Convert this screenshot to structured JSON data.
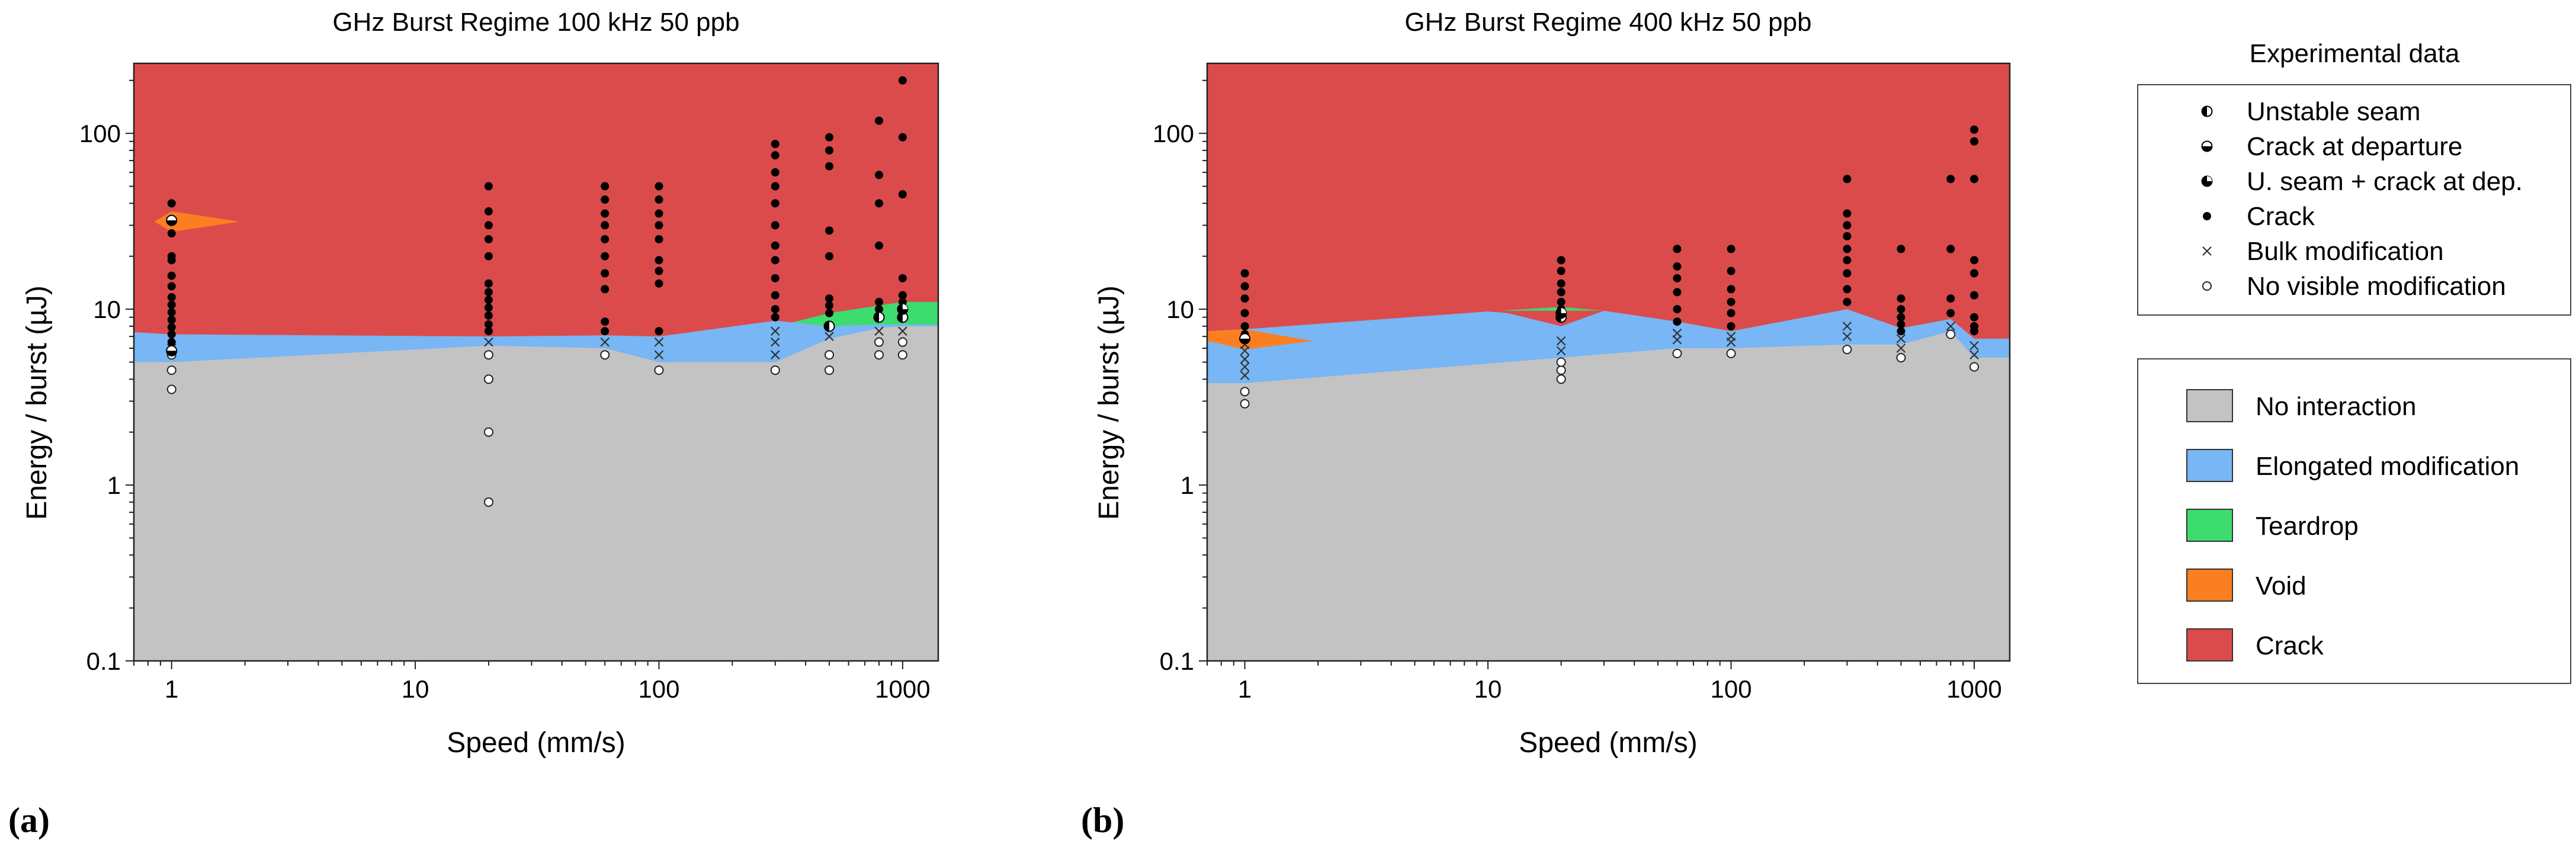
{
  "figure": {
    "legend_markers_title": "Experimental data",
    "legend_markers": [
      {
        "label": "Unstable seam",
        "marker": "half-left-filled-circle"
      },
      {
        "label": "Crack at departure",
        "marker": "half-bottom-filled-circle"
      },
      {
        "label": "U. seam + crack at dep.",
        "marker": "three-quarter-filled-circle"
      },
      {
        "label": "Crack",
        "marker": "filled-dot"
      },
      {
        "label": "Bulk modification",
        "marker": "x-cross"
      },
      {
        "label": "No visible modification",
        "marker": "open-circle"
      }
    ],
    "legend_regions": [
      {
        "label": "No interaction",
        "color": "#c3c3c3"
      },
      {
        "label": "Elongated modification",
        "color": "#78b6f5"
      },
      {
        "label": "Teardrop",
        "color": "#3ddc6e"
      },
      {
        "label": "Void",
        "color": "#fb7f21"
      },
      {
        "label": "Crack",
        "color": "#db4b4c"
      }
    ]
  },
  "chart_data": [
    {
      "type": "scatter",
      "panel_label": "(a)",
      "title": "GHz Burst Regime 100 kHz 50 ppb",
      "xlabel": "Speed (mm/s)",
      "ylabel": "Energy / burst (µJ)",
      "xscale": "log",
      "yscale": "log",
      "xlim": [
        0.7,
        1400
      ],
      "ylim": [
        0.1,
        250
      ],
      "xticks": [
        1,
        10,
        100,
        1000
      ],
      "xtick_labels": [
        "1",
        "10",
        "100",
        "1000"
      ],
      "yticks": [
        0.1,
        1,
        10,
        100
      ],
      "ytick_labels": [
        "0.1",
        "1",
        "10",
        "100"
      ],
      "regions": {
        "no_interaction_upper": {
          "x": [
            0.7,
            1,
            20,
            60,
            100,
            300,
            500,
            800,
            1000,
            1400
          ],
          "y": [
            5.0,
            5.0,
            6.2,
            6.0,
            5.0,
            5.0,
            6.8,
            7.8,
            8.0,
            8.0
          ]
        },
        "elongated_upper": {
          "x": [
            0.7,
            1,
            20,
            60,
            100,
            300,
            500,
            800,
            1000,
            1400
          ],
          "y": [
            7.4,
            7.2,
            7.0,
            7.1,
            7.0,
            8.6,
            8.0,
            8.2,
            8.2,
            8.2
          ]
        },
        "teardrop_upper": {
          "x": [
            350,
            500,
            800,
            1000,
            1400
          ],
          "y": [
            8.4,
            9.5,
            10.5,
            11.0,
            11.0
          ]
        },
        "void_triangle": {
          "x": [
            0.85,
            1.0,
            1.9,
            1.0
          ],
          "y": [
            31.5,
            36.0,
            31.5,
            27.5
          ]
        }
      },
      "points": {
        "crack": [
          {
            "x": 1,
            "y": [
              6.5,
              7.2,
              7.9,
              8.7,
              9.6,
              10.6,
              11.7,
              13.5,
              15.5,
              19,
              20,
              27,
              40
            ]
          },
          {
            "x": 20,
            "y": [
              7.5,
              8.2,
              9.2,
              10.2,
              11.3,
              12.5,
              14,
              20,
              25,
              30,
              36,
              50
            ]
          },
          {
            "x": 60,
            "y": [
              7.5,
              8.5,
              13,
              16,
              20,
              25,
              30,
              35,
              42,
              50
            ]
          },
          {
            "x": 100,
            "y": [
              7.5,
              14,
              16.5,
              19,
              25,
              30,
              35,
              42,
              50
            ]
          },
          {
            "x": 300,
            "y": [
              9,
              10,
              12,
              15,
              19,
              23,
              30,
              40,
              50,
              60,
              75,
              87
            ]
          },
          {
            "x": 500,
            "y": [
              9.5,
              10.5,
              11.5,
              20,
              28,
              65,
              80,
              95
            ]
          },
          {
            "x": 800,
            "y": [
              10,
              11,
              23,
              40,
              58,
              118
            ]
          },
          {
            "x": 1000,
            "y": [
              10,
              11,
              12,
              15,
              45,
              95,
              200
            ]
          }
        ],
        "bulk_modification": [
          {
            "x": 1,
            "y": [
              6.0
            ]
          },
          {
            "x": 20,
            "y": [
              6.5
            ]
          },
          {
            "x": 60,
            "y": [
              6.5
            ]
          },
          {
            "x": 100,
            "y": [
              5.5,
              6.5
            ]
          },
          {
            "x": 300,
            "y": [
              5.5,
              6.5,
              7.5
            ]
          },
          {
            "x": 500,
            "y": [
              7.0
            ]
          },
          {
            "x": 800,
            "y": [
              7.5
            ]
          },
          {
            "x": 1000,
            "y": [
              7.5
            ]
          }
        ],
        "no_visible_modification": [
          {
            "x": 1,
            "y": [
              3.5,
              4.5,
              5.5
            ]
          },
          {
            "x": 20,
            "y": [
              0.8,
              2.0,
              4.0,
              5.5
            ]
          },
          {
            "x": 60,
            "y": [
              5.5
            ]
          },
          {
            "x": 100,
            "y": [
              4.5
            ]
          },
          {
            "x": 300,
            "y": [
              4.5
            ]
          },
          {
            "x": 500,
            "y": [
              4.5,
              5.5
            ]
          },
          {
            "x": 800,
            "y": [
              5.5,
              6.5
            ]
          },
          {
            "x": 1000,
            "y": [
              5.5,
              6.5
            ]
          }
        ],
        "unstable_seam": [
          {
            "x": 500,
            "y": [
              8.0
            ]
          },
          {
            "x": 800,
            "y": [
              9.0
            ]
          },
          {
            "x": 1000,
            "y": [
              9.0
            ]
          }
        ],
        "crack_at_departure": [
          {
            "x": 1,
            "y": [
              5.8,
              32.0
            ]
          }
        ],
        "u_seam_crack_at_dep": [
          {
            "x": 1000,
            "y": [
              10.0
            ]
          }
        ]
      }
    },
    {
      "type": "scatter",
      "panel_label": "(b)",
      "title": "GHz Burst Regime 400 kHz 50 ppb",
      "xlabel": "Speed (mm/s)",
      "ylabel": "Energy / burst (µJ)",
      "xscale": "log",
      "yscale": "log",
      "xlim": [
        0.7,
        1400
      ],
      "ylim": [
        0.1,
        250
      ],
      "xticks": [
        1,
        10,
        100,
        1000
      ],
      "xtick_labels": [
        "1",
        "10",
        "100",
        "1000"
      ],
      "yticks": [
        0.1,
        1,
        10,
        100
      ],
      "ytick_labels": [
        "0.1",
        "1",
        "10",
        "100"
      ],
      "regions": {
        "no_interaction_upper": {
          "x": [
            0.7,
            1,
            20,
            60,
            100,
            300,
            500,
            800,
            1000,
            1400
          ],
          "y": [
            3.8,
            3.8,
            5.3,
            6.0,
            6.0,
            6.3,
            6.3,
            7.5,
            5.3,
            5.3
          ]
        },
        "elongated_upper": {
          "x": [
            0.7,
            1,
            10,
            20,
            30,
            60,
            100,
            300,
            500,
            800,
            1000,
            1400
          ],
          "y": [
            7.5,
            7.7,
            9.7,
            9.0,
            9.8,
            8.5,
            7.5,
            10.0,
            7.8,
            8.8,
            6.8,
            6.8
          ]
        },
        "teardrop_triangle": {
          "x": [
            11,
            20,
            30
          ],
          "y": [
            9.8,
            8.0,
            9.8
          ]
        },
        "teardrop_top": [
          10.3,
          9.3
        ],
        "void_band": {
          "x": [
            0.7,
            1.0,
            1.9,
            1.0,
            0.7
          ],
          "y": [
            7.5,
            7.7,
            6.6,
            5.9,
            6.6
          ]
        }
      },
      "points": {
        "crack": [
          {
            "x": 1,
            "y": [
              7.2,
              8,
              9.5,
              11.5,
              13.5,
              16
            ]
          },
          {
            "x": 20,
            "y": [
              10,
              11,
              12.5,
              14,
              16.5,
              19
            ]
          },
          {
            "x": 60,
            "y": [
              8.5,
              10,
              12.5,
              15,
              17.5,
              22
            ]
          },
          {
            "x": 100,
            "y": [
              8,
              9.5,
              11,
              13,
              16.5,
              22
            ]
          },
          {
            "x": 300,
            "y": [
              11,
              13,
              16,
              19,
              22,
              26,
              30,
              35,
              55
            ]
          },
          {
            "x": 500,
            "y": [
              7.5,
              8.2,
              9,
              10,
              11.5,
              22
            ]
          },
          {
            "x": 800,
            "y": [
              9.5,
              11.5,
              22,
              55
            ]
          },
          {
            "x": 1000,
            "y": [
              7.5,
              8,
              9,
              12,
              16,
              19,
              55,
              90,
              105
            ]
          }
        ],
        "bulk_modification": [
          {
            "x": 1,
            "y": [
              4.2,
              4.7,
              5.2,
              5.8,
              6.3
            ]
          },
          {
            "x": 20,
            "y": [
              5.8,
              6.6
            ]
          },
          {
            "x": 60,
            "y": [
              6.7,
              7.3
            ]
          },
          {
            "x": 100,
            "y": [
              6.5,
              7.0
            ]
          },
          {
            "x": 300,
            "y": [
              7.0,
              8.0
            ]
          },
          {
            "x": 500,
            "y": [
              6.0,
              6.8
            ]
          },
          {
            "x": 800,
            "y": [
              8.0
            ]
          },
          {
            "x": 1000,
            "y": [
              5.5,
              6.2
            ]
          }
        ],
        "no_visible_modification": [
          {
            "x": 1,
            "y": [
              2.9,
              3.4
            ]
          },
          {
            "x": 20,
            "y": [
              4.0,
              4.5,
              5.0
            ]
          },
          {
            "x": 60,
            "y": [
              5.6
            ]
          },
          {
            "x": 100,
            "y": [
              5.6
            ]
          },
          {
            "x": 300,
            "y": [
              5.9
            ]
          },
          {
            "x": 500,
            "y": [
              5.3
            ]
          },
          {
            "x": 800,
            "y": [
              7.2
            ]
          },
          {
            "x": 1000,
            "y": [
              4.7
            ]
          }
        ],
        "unstable_seam": [
          {
            "x": 20,
            "y": [
              9.0
            ]
          }
        ],
        "crack_at_departure": [
          {
            "x": 1,
            "y": [
              6.8
            ]
          }
        ],
        "u_seam_crack_at_dep": [
          {
            "x": 20,
            "y": [
              9.5
            ]
          }
        ]
      }
    }
  ]
}
